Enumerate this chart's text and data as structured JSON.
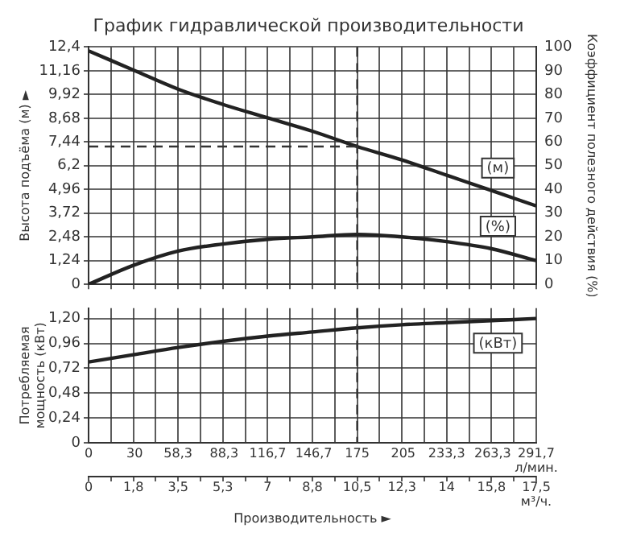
{
  "chart_data": [
    {
      "type": "line",
      "title": "График гидравлической производительности",
      "ylabel": "Высота подъёма (м) ►",
      "y2label": "Коэффициент полезного действия (%)",
      "x": [
        0,
        1.75,
        3.5,
        5.25,
        7,
        8.75,
        10.5,
        12.25,
        14,
        15.75,
        17.5
      ],
      "series": [
        {
          "name": "(м)",
          "color": "#222222",
          "values": [
            12.2,
            11.2,
            10.2,
            9.4,
            8.7,
            8.0,
            7.2,
            6.5,
            5.7,
            4.9,
            4.1
          ]
        },
        {
          "name": "(%)",
          "color": "#222222",
          "axis": "y2",
          "values": [
            0,
            8,
            14,
            17,
            19,
            20,
            21,
            20,
            18,
            15,
            10
          ]
        }
      ],
      "xlim": [
        0,
        17.5
      ],
      "xticks": [
        0,
        {
          "value": 0.875,
          "label": null
        },
        {
          "value": 1.75,
          "label": null
        },
        {
          "value": 2.625,
          "label": null
        },
        {
          "value": 3.5,
          "label": null
        },
        {
          "value": 4.375,
          "label": null
        },
        {
          "value": 5.25,
          "label": null
        },
        {
          "value": 6.125,
          "label": null
        },
        {
          "value": 7,
          "label": null
        },
        {
          "value": 7.875,
          "label": null
        },
        {
          "value": 8.75,
          "label": null
        },
        {
          "value": 9.625,
          "label": null
        },
        {
          "value": 10.5,
          "label": null
        },
        {
          "value": 11.375,
          "label": null
        },
        {
          "value": 12.25,
          "label": null
        },
        {
          "value": 13.125,
          "label": null
        },
        {
          "value": 14,
          "label": null
        },
        {
          "value": 14.875,
          "label": null
        },
        {
          "value": 15.75,
          "label": null
        },
        {
          "value": 16.625,
          "label": null
        },
        {
          "value": 17.5,
          "label": null
        }
      ],
      "ylim": [
        0,
        12.4
      ],
      "yticks": [
        0,
        {
          "value": 1.24,
          "label": "1,24"
        },
        {
          "value": 2.48,
          "label": "2,48"
        },
        {
          "value": 3.72,
          "label": "3,72"
        },
        {
          "value": 4.96,
          "label": "4,96"
        },
        {
          "value": 6.2,
          "label": "6,2"
        },
        {
          "value": 7.44,
          "label": "7,44"
        },
        {
          "value": 8.68,
          "label": "8,68"
        },
        {
          "value": 9.92,
          "label": "9,92"
        },
        {
          "value": 11.16,
          "label": "11,16"
        },
        {
          "value": 12.4,
          "label": "12,4"
        }
      ],
      "y2lim": [
        0,
        100
      ],
      "y2ticks": [
        0,
        10,
        20,
        30,
        40,
        50,
        60,
        70,
        80,
        90,
        100
      ],
      "ref_lines": [
        {
          "axis": "y",
          "value": 7.2,
          "line_style": "dashed"
        },
        {
          "axis": "x",
          "value": 10.5,
          "line_style": "dashed"
        }
      ],
      "grid": true,
      "legend": false,
      "marker": "none",
      "line_style": "solid",
      "tick_labels": "y"
    },
    {
      "type": "line",
      "ylabel": "Потребляемая мощность (кВт)",
      "xlabel": "Производительность ►",
      "x": [
        0,
        1.75,
        3.5,
        5.25,
        7,
        8.75,
        10.5,
        12.25,
        14,
        15.75,
        17.5
      ],
      "series": [
        {
          "name": "(кВт)",
          "color": "#222222",
          "values": [
            0.78,
            0.85,
            0.92,
            0.98,
            1.03,
            1.07,
            1.11,
            1.14,
            1.16,
            1.18,
            1.2
          ]
        }
      ],
      "xlim": [
        0,
        17.5
      ],
      "xticks": [
        0,
        {
          "value": 0.875,
          "label": null
        },
        {
          "value": 1.75,
          "label": "1,8"
        },
        {
          "value": 2.625,
          "label": null
        },
        {
          "value": 3.5,
          "label": "3,5"
        },
        {
          "value": 4.375,
          "label": null
        },
        {
          "value": 5.25,
          "label": "5,3"
        },
        {
          "value": 6.125,
          "label": null
        },
        {
          "value": 7,
          "label": "7"
        },
        {
          "value": 7.875,
          "label": null
        },
        {
          "value": 8.75,
          "label": "8,8"
        },
        {
          "value": 9.625,
          "label": null
        },
        {
          "value": 10.5,
          "label": "10,5"
        },
        {
          "value": 11.375,
          "label": null
        },
        {
          "value": 12.25,
          "label": "12,3"
        },
        {
          "value": 13.125,
          "label": null
        },
        {
          "value": 14,
          "label": "14"
        },
        {
          "value": 14.875,
          "label": null
        },
        {
          "value": 15.75,
          "label": "15,8"
        },
        {
          "value": 16.625,
          "label": null
        },
        {
          "value": 17.5,
          "label": "17,5 м³/ч."
        }
      ],
      "x2lim": [
        0,
        291.7
      ],
      "x2ticks": [
        0,
        30,
        {
          "value": 58.3,
          "label": "58,3"
        },
        {
          "value": 88.3,
          "label": "88,3"
        },
        {
          "value": 116.7,
          "label": "116,7"
        },
        {
          "value": 146.7,
          "label": "146,7"
        },
        175,
        205,
        {
          "value": 233.3,
          "label": "233,3"
        },
        {
          "value": 263.3,
          "label": "263,3"
        },
        {
          "value": 291.7,
          "label": "291,7 л/мин."
        }
      ],
      "ylim": [
        0,
        1.3
      ],
      "yticks": [
        0,
        {
          "value": 0.24,
          "label": "0,24"
        },
        {
          "value": 0.48,
          "label": "0,48"
        },
        {
          "value": 0.72,
          "label": "0,72"
        },
        {
          "value": 0.96,
          "label": "0,96"
        },
        {
          "value": 1.2,
          "label": "1,20"
        }
      ],
      "ref_lines": [
        {
          "axis": "x",
          "value": 10.5,
          "line_style": "dashed"
        }
      ],
      "grid": true,
      "legend": false,
      "marker": "none",
      "line_style": "solid"
    }
  ]
}
